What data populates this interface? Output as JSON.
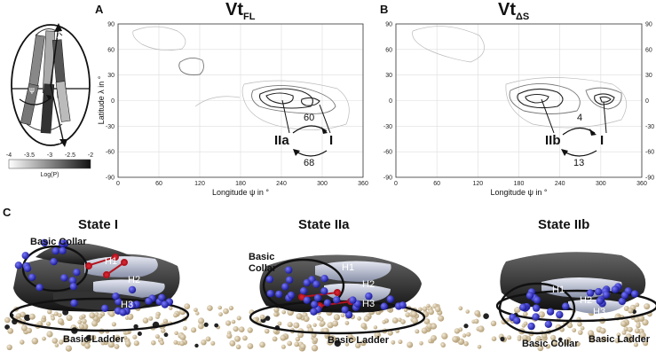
{
  "panels": {
    "A": {
      "letter": "A",
      "title_main": "Vt",
      "title_sub": "FL"
    },
    "B": {
      "letter": "B",
      "title_main": "Vt",
      "title_sub": "ΔS"
    },
    "C": {
      "letter": "C"
    }
  },
  "axes": {
    "xlabel": "Longitude ψ in °",
    "ylabel": "Latitude λ in °",
    "xticks": [
      "0",
      "60",
      "120",
      "180",
      "240",
      "300",
      "360"
    ],
    "yticks": [
      "90",
      "60",
      "30",
      "0",
      "-30",
      "-60",
      "-90"
    ],
    "xlim": [
      0,
      360
    ],
    "ylim": [
      -90,
      90
    ]
  },
  "colorbar": {
    "label": "Log(P)",
    "ticks": [
      "-4",
      "-3.5",
      "-3",
      "-2.5",
      "-2"
    ]
  },
  "chart_data": [
    {
      "type": "contour",
      "panel": "A",
      "xlim": [
        0,
        360
      ],
      "ylim": [
        -90,
        90
      ],
      "states": [
        {
          "label": "IIa",
          "psi": 240,
          "lambda": 0
        },
        {
          "label": "I",
          "psi": 300,
          "lambda": -5
        }
      ],
      "transitions": [
        {
          "from": "IIa",
          "to": "I",
          "value": "60"
        },
        {
          "from": "I",
          "to": "IIa",
          "value": "68"
        }
      ]
    },
    {
      "type": "contour",
      "panel": "B",
      "xlim": [
        0,
        360
      ],
      "ylim": [
        -90,
        90
      ],
      "states": [
        {
          "label": "IIb",
          "psi": 205,
          "lambda": 0
        },
        {
          "label": "I",
          "psi": 300,
          "lambda": -5
        }
      ],
      "transitions": [
        {
          "from": "IIb",
          "to": "I",
          "value": "4"
        },
        {
          "from": "I",
          "to": "IIb",
          "value": "13"
        }
      ]
    }
  ],
  "states": [
    {
      "title": "State I",
      "labels": {
        "collar": "Basic Collar",
        "ladder": "Basic Ladder",
        "h1": "H1",
        "h2": "H2",
        "h3": "H3"
      }
    },
    {
      "title": "State IIa",
      "labels": {
        "collar": "Basic Collar",
        "ladder": "Basic Ladder",
        "h1": "H1",
        "h2": "H2",
        "h3": "H3"
      }
    },
    {
      "title": "State IIb",
      "labels": {
        "collar": "Basic Collar",
        "ladder": "Basic Ladder",
        "h1": "H1",
        "h2": "H2",
        "h3": "H3"
      }
    }
  ],
  "schematic": {
    "labels": [
      "λ",
      "ψ",
      "χ"
    ]
  }
}
